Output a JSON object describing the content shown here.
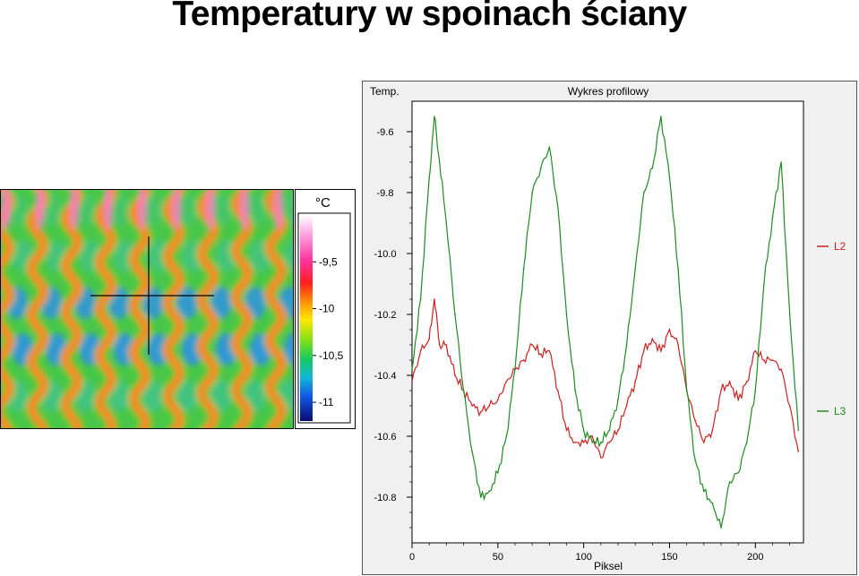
{
  "slide": {
    "title": "Temperatury w spoinach ściany"
  },
  "colorbar": {
    "unit": "°C",
    "ticks": [
      "-9,5",
      "-10",
      "-10,5",
      "-11"
    ],
    "tick_values": [
      -9.5,
      -10.0,
      -10.5,
      -11.0
    ],
    "range": [
      -9.0,
      -11.2
    ]
  },
  "thermal_image": {
    "description_colors": {
      "cold": "#1e8cf0",
      "mid": "#3cc83c",
      "warm": "#ff3c28",
      "hot": "#ff78c8"
    },
    "crosshair_color": "#000000"
  },
  "chart_data": {
    "type": "line",
    "title": "Wykres profilowy",
    "ylabel": "Temp.",
    "xlabel": "Piksel",
    "xlim": [
      0,
      228
    ],
    "ylim": [
      -10.95,
      -9.5
    ],
    "xticks": [
      0,
      50,
      100,
      150,
      200
    ],
    "yticks": [
      -9.6,
      -9.8,
      -10.0,
      -10.2,
      -10.4,
      -10.6,
      -10.8
    ],
    "ytick_labels": [
      "-9.6",
      "-9.8",
      "-10.0",
      "-10.2",
      "-10.4",
      "-10.6",
      "-10.8"
    ],
    "legend_position": "right",
    "series": [
      {
        "name": "L2",
        "color": "#cc2020",
        "x": [
          0,
          5,
          10,
          13,
          16,
          20,
          25,
          30,
          35,
          40,
          45,
          50,
          55,
          60,
          65,
          70,
          75,
          80,
          85,
          90,
          95,
          100,
          105,
          110,
          115,
          120,
          125,
          130,
          135,
          140,
          145,
          150,
          155,
          160,
          165,
          170,
          175,
          180,
          185,
          190,
          195,
          200,
          205,
          210,
          215,
          220,
          225
        ],
        "y": [
          -10.42,
          -10.32,
          -10.28,
          -10.15,
          -10.3,
          -10.3,
          -10.4,
          -10.45,
          -10.5,
          -10.52,
          -10.5,
          -10.48,
          -10.42,
          -10.38,
          -10.35,
          -10.3,
          -10.33,
          -10.32,
          -10.45,
          -10.58,
          -10.62,
          -10.62,
          -10.6,
          -10.67,
          -10.62,
          -10.58,
          -10.5,
          -10.42,
          -10.32,
          -10.28,
          -10.32,
          -10.25,
          -10.3,
          -10.45,
          -10.55,
          -10.62,
          -10.58,
          -10.45,
          -10.42,
          -10.48,
          -10.42,
          -10.32,
          -10.35,
          -10.35,
          -10.38,
          -10.5,
          -10.65
        ]
      },
      {
        "name": "L3",
        "color": "#208a20",
        "x": [
          0,
          5,
          10,
          13,
          16,
          20,
          25,
          30,
          35,
          40,
          45,
          50,
          55,
          60,
          65,
          70,
          75,
          80,
          85,
          90,
          95,
          100,
          105,
          110,
          115,
          120,
          125,
          130,
          135,
          140,
          145,
          150,
          155,
          160,
          165,
          170,
          175,
          180,
          185,
          190,
          195,
          200,
          205,
          210,
          215,
          220,
          225
        ],
        "y": [
          -10.38,
          -10.15,
          -9.75,
          -9.55,
          -9.7,
          -9.9,
          -10.2,
          -10.45,
          -10.65,
          -10.8,
          -10.78,
          -10.72,
          -10.6,
          -10.38,
          -10.05,
          -9.8,
          -9.72,
          -9.65,
          -9.85,
          -10.2,
          -10.45,
          -10.58,
          -10.62,
          -10.62,
          -10.58,
          -10.48,
          -10.3,
          -10.05,
          -9.8,
          -9.72,
          -9.55,
          -9.75,
          -10.05,
          -10.45,
          -10.68,
          -10.78,
          -10.82,
          -10.9,
          -10.75,
          -10.72,
          -10.62,
          -10.45,
          -10.1,
          -9.88,
          -9.7,
          -10.2,
          -10.58
        ]
      }
    ]
  }
}
